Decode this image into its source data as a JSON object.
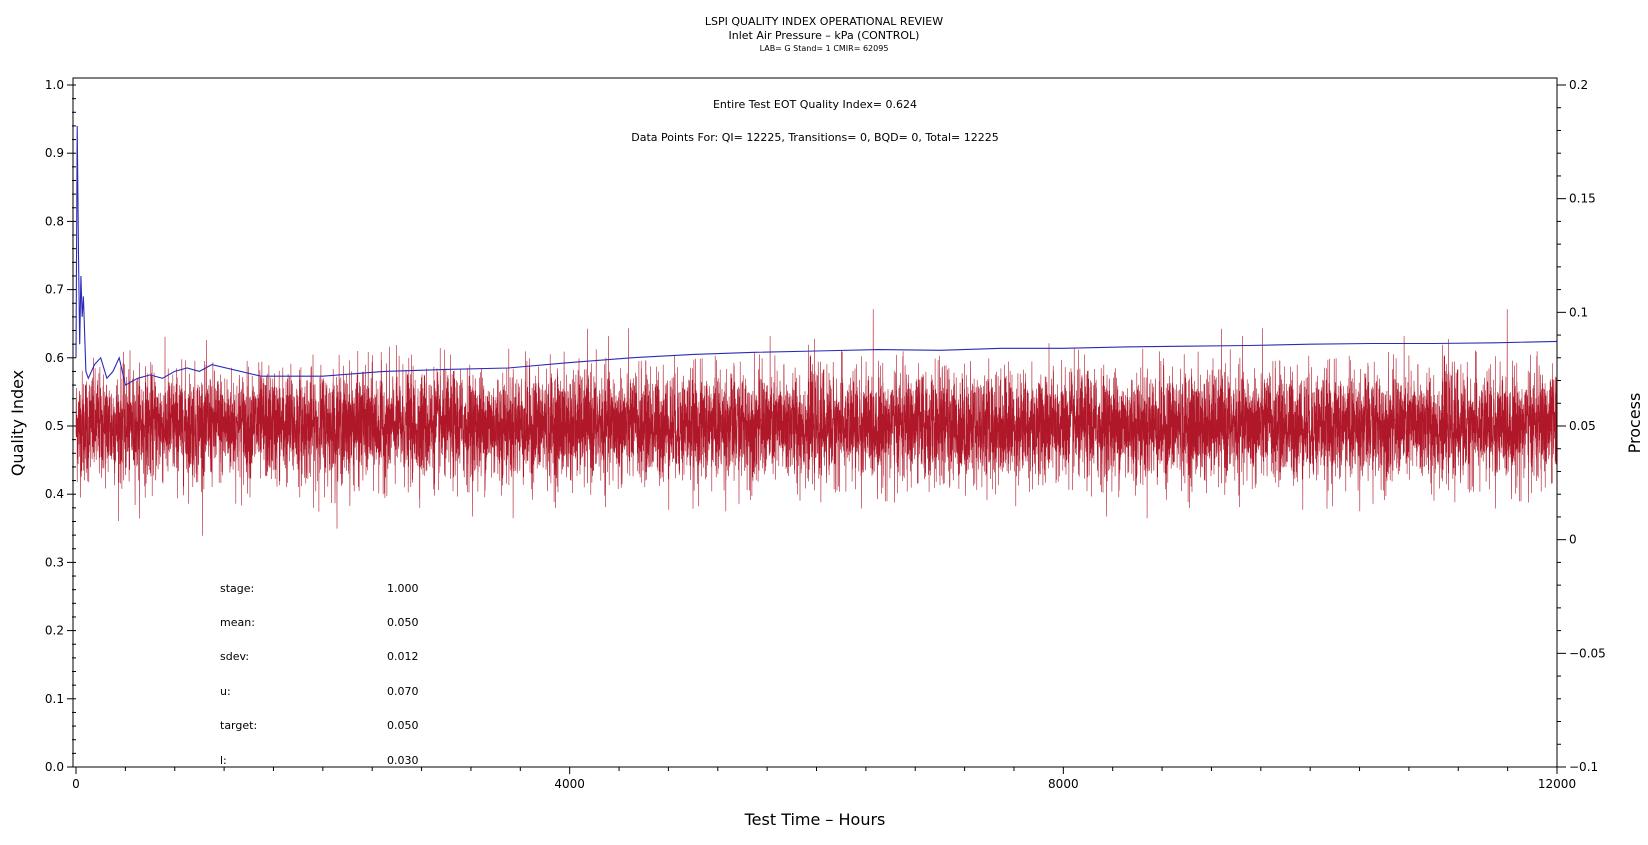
{
  "chart_data": {
    "type": "line",
    "title": "LSPI QUALITY INDEX OPERATIONAL REVIEW",
    "subtitle": "Inlet Air Pressure – kPa (CONTROL)",
    "subtitle2": "LAB= G Stand= 1 CMIR= 62095",
    "xlabel": "Test Time – Hours",
    "ylabel_left": "Quality Index",
    "ylabel_right": "Process",
    "xlim": [
      0,
      12000
    ],
    "ylim_left": [
      0.0,
      1.0
    ],
    "ylim_right": [
      -0.1,
      0.2
    ],
    "x_ticks": [
      "0",
      "4000",
      "8000",
      "12000"
    ],
    "y_left_ticks": [
      "0.0",
      "0.1",
      "0.2",
      "0.3",
      "0.4",
      "0.5",
      "0.6",
      "0.7",
      "0.8",
      "0.9",
      "1.0"
    ],
    "y_right_ticks": [
      "−0.1",
      "−0.05",
      "0",
      "0.05",
      "0.1",
      "0.15",
      "0.2"
    ],
    "annotation_eot": "Entire Test EOT Quality Index=   0.624",
    "annotation_points": "Data Points For: QI= 12225, Transitions=     0, BQD=     0, Total= 12225",
    "stats": [
      {
        "label": "stage:",
        "value": "1.000"
      },
      {
        "label": "mean:",
        "value": "0.050"
      },
      {
        "label": "sdev:",
        "value": "0.012"
      },
      {
        "label": "u:",
        "value": "0.070"
      },
      {
        "label": "target:",
        "value": "0.050"
      },
      {
        "label": "l:",
        "value": "0.030"
      }
    ],
    "series": [
      {
        "axis": "left",
        "color": "#2b2bb8",
        "x": [
          0,
          10,
          20,
          30,
          40,
          50,
          60,
          80,
          100,
          150,
          200,
          250,
          300,
          350,
          400,
          500,
          600,
          700,
          800,
          900,
          1000,
          1100,
          1500,
          2000,
          2500,
          3000,
          3500,
          4000,
          4500,
          5000,
          5500,
          6000,
          6500,
          7000,
          7500,
          8000,
          8500,
          9000,
          9500,
          10000,
          10500,
          11000,
          11500,
          12000
        ],
        "values": [
          0.6,
          0.94,
          0.75,
          0.62,
          0.72,
          0.66,
          0.69,
          0.58,
          0.57,
          0.59,
          0.6,
          0.57,
          0.58,
          0.6,
          0.56,
          0.57,
          0.575,
          0.57,
          0.58,
          0.585,
          0.58,
          0.59,
          0.573,
          0.573,
          0.58,
          0.583,
          0.585,
          0.593,
          0.6,
          0.605,
          0.608,
          0.61,
          0.612,
          0.611,
          0.614,
          0.614,
          0.616,
          0.617,
          0.618,
          0.62,
          0.621,
          0.621,
          0.622,
          0.624
        ]
      },
      {
        "axis": "right",
        "color": "#b0182a",
        "n_points": 12225,
        "mean": 0.05,
        "sdev": 0.012,
        "x_range": [
          0,
          12000
        ]
      }
    ],
    "colors": {
      "qi_line": "#2b2bb8",
      "process": "#b0182a",
      "axes": "#000000"
    }
  }
}
